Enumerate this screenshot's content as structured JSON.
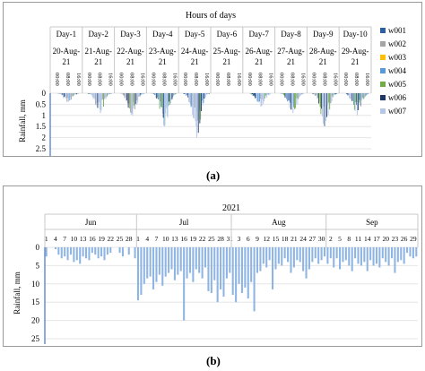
{
  "chart_data": [
    {
      "type": "bar",
      "title": "Hours of days",
      "ylabel": "Rainfall, mm",
      "ylim": [
        0,
        2.5
      ],
      "y_ticks": [
        "0",
        "0.5",
        "1",
        "1.5",
        "2",
        "2.5"
      ],
      "y_inverted": true,
      "days": [
        "Day-1",
        "Day-2",
        "Day-3",
        "Day-4",
        "Day-5",
        "Day-6",
        "Day-7",
        "Day-8",
        "Day-9",
        "Day-10"
      ],
      "dates": [
        "20-Aug-21",
        "21-Aug-21",
        "22-Aug-21",
        "23-Aug-21",
        "24-Aug-21",
        "25-Aug-21",
        "26-Aug-21",
        "27-Aug-21",
        "28-Aug-21",
        "29-Aug-21"
      ],
      "hour_ticks": [
        "00:00",
        "08:00",
        "16:00"
      ],
      "legend_position": "right",
      "series": [
        {
          "name": "w001",
          "color": "#2e5f9e"
        },
        {
          "name": "w002",
          "color": "#a5a5a5"
        },
        {
          "name": "w003",
          "color": "#ffc000"
        },
        {
          "name": "w004",
          "color": "#5b9bd5"
        },
        {
          "name": "w005",
          "color": "#70ad47"
        },
        {
          "name": "w006",
          "color": "#1f3864"
        },
        {
          "name": "w007",
          "color": "#b4c7e7"
        }
      ],
      "day_max_values": [
        0.4,
        0.9,
        1.0,
        1.5,
        2.0,
        0.0,
        0.6,
        0.9,
        1.5,
        1.0
      ]
    },
    {
      "type": "bar",
      "year_label": "2021",
      "ylabel": "Rainfall, mm",
      "ylim": [
        0,
        25
      ],
      "y_ticks": [
        "0",
        "5",
        "10",
        "15",
        "20",
        "25"
      ],
      "y_inverted": true,
      "color": "#8eb4e3",
      "months": [
        "Jun",
        "Jul",
        "Aug",
        "Sep"
      ],
      "month_day_ticks": [
        [
          "1",
          "4",
          "7",
          "10",
          "13",
          "16",
          "19",
          "22",
          "25",
          "28"
        ],
        [
          "1",
          "4",
          "7",
          "10",
          "13",
          "16",
          "19",
          "22",
          "25",
          "28",
          "31"
        ],
        [
          "3",
          "6",
          "9",
          "12",
          "15",
          "18",
          "21",
          "24",
          "27",
          "30"
        ],
        [
          "2",
          "5",
          "8",
          "11",
          "14",
          "17",
          "20",
          "23",
          "26",
          "29"
        ]
      ],
      "daily_values": {
        "Jun": [
          2.5,
          0,
          0,
          0.5,
          2.0,
          3.0,
          2.5,
          3.5,
          2.0,
          4.0,
          3.5,
          4.5,
          2.5,
          3.0,
          3.5,
          1.5,
          2.0,
          3.0,
          2.5,
          3.5,
          2.0,
          1.5,
          0,
          0,
          1.5,
          2.5,
          0,
          2.0,
          0,
          3.0
        ],
        "Jul": [
          14.5,
          13.0,
          10.0,
          8.5,
          8.0,
          11.5,
          9.5,
          7.5,
          10.5,
          8.0,
          7.0,
          6.0,
          9.0,
          7.5,
          6.5,
          20.0,
          8.5,
          7.0,
          9.5,
          6.0,
          7.0,
          8.5,
          5.5,
          12.0,
          12.5,
          9.0,
          15.0,
          11.5,
          13.5,
          8.5,
          7.0
        ],
        "Aug": [
          13.0,
          15.0,
          10.0,
          12.5,
          11.0,
          14.0,
          9.5,
          17.5,
          7.0,
          6.5,
          4.5,
          5.5,
          3.5,
          11.5,
          6.0,
          4.5,
          5.0,
          3.0,
          4.0,
          7.0,
          5.5,
          3.5,
          4.0,
          6.5,
          8.5,
          6.0,
          4.0,
          3.0,
          4.5,
          3.5,
          2.5
        ],
        "Sep": [
          4.5,
          3.0,
          5.5,
          3.0,
          6.0,
          4.0,
          3.5,
          5.0,
          6.5,
          3.0,
          4.5,
          5.0,
          4.0,
          6.5,
          3.5,
          5.0,
          4.5,
          5.5,
          3.0,
          4.0,
          5.0,
          3.0,
          7.0,
          4.0,
          3.5,
          4.5,
          1.5,
          2.5,
          3.0,
          2.5
        ]
      }
    }
  ],
  "captions": {
    "a": "(a)",
    "b": "(b)"
  }
}
